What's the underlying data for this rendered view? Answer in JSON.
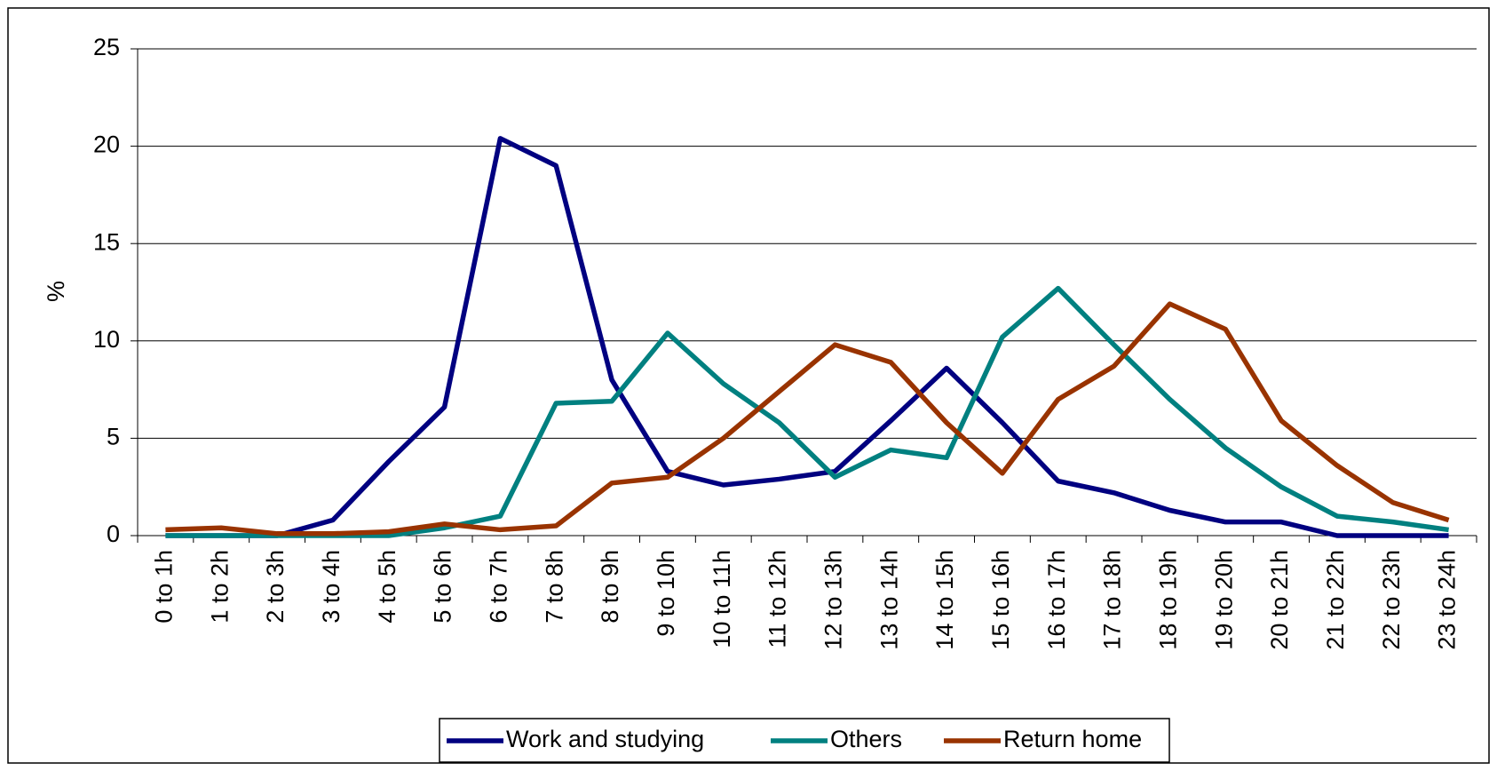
{
  "chart_data": {
    "type": "line",
    "y_label": "%",
    "categories": [
      "0 to 1h",
      "1 to 2h",
      "2 to 3h",
      "3 to 4h",
      "4 to 5h",
      "5 to 6h",
      "6 to 7h",
      "7 to 8h",
      "8 to 9h",
      "9 to 10h",
      "10 to 11h",
      "11 to 12h",
      "12 to 13h",
      "13 to 14h",
      "14 to 15h",
      "15 to 16h",
      "16 to 17h",
      "17 to 18h",
      "18 to 19h",
      "19 to 20h",
      "20 to 21h",
      "21 to 22h",
      "22 to 23h",
      "23 to 24h"
    ],
    "series": [
      {
        "name": "Work and studying",
        "color": "#000080",
        "values": [
          0,
          0,
          0,
          0.8,
          3.8,
          6.6,
          20.4,
          19,
          8,
          3.3,
          2.6,
          2.9,
          3.3,
          5.9,
          8.6,
          5.8,
          2.8,
          2.2,
          1.3,
          0.7,
          0.7,
          0,
          0,
          0
        ]
      },
      {
        "name": "Others",
        "color": "#008080",
        "values": [
          0,
          0,
          0,
          0,
          0,
          0.4,
          1,
          6.8,
          6.9,
          10.4,
          7.8,
          5.8,
          3,
          4.4,
          4,
          10.2,
          12.7,
          9.8,
          7,
          4.5,
          2.5,
          1,
          0.7,
          0.3
        ]
      },
      {
        "name": "Return home",
        "color": "#993300",
        "values": [
          0.3,
          0.4,
          0.1,
          0.1,
          0.2,
          0.6,
          0.3,
          0.5,
          2.7,
          3,
          5,
          7.4,
          9.8,
          8.9,
          5.8,
          3.2,
          7,
          8.7,
          11.9,
          10.6,
          5.9,
          3.6,
          1.7,
          0.8
        ]
      }
    ],
    "ylim": [
      0,
      25
    ],
    "yticks": [
      0,
      5,
      10,
      15,
      20,
      25
    ],
    "grid": true,
    "legend": "bottom"
  }
}
